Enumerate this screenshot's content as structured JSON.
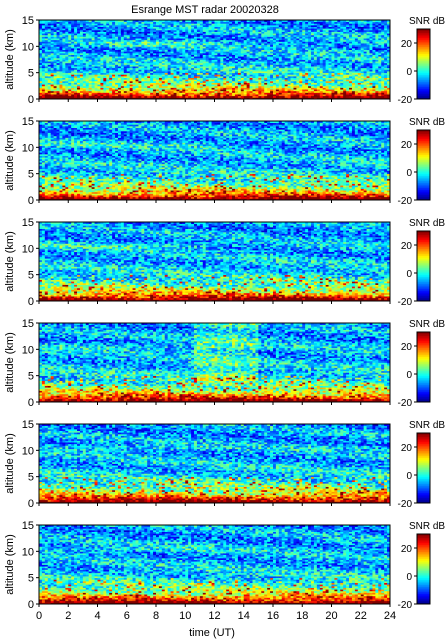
{
  "title": "Esrange MST radar 20020328",
  "xlabel": "time (UT)",
  "colorbar_label": "SNR dB",
  "chart_data": {
    "type": "heatmap",
    "title": "Esrange MST radar 20020328",
    "xlabel": "time (UT)",
    "ylabel": "altitude (km)",
    "xlim": [
      0,
      24
    ],
    "ylim": [
      0,
      15
    ],
    "x_ticks": [
      0,
      2,
      4,
      6,
      8,
      10,
      12,
      14,
      16,
      18,
      20,
      22,
      24
    ],
    "y_ticks": [
      0,
      5,
      10,
      15
    ],
    "colorscale": "jet",
    "color_range": [
      -20,
      30
    ],
    "colorbar_ticks": [
      -20,
      0,
      20
    ],
    "colorbar_label": "SNR dB",
    "panels": [
      {
        "ylabel": "altitude (km)",
        "ylim": [
          0,
          15
        ],
        "clim": [
          -20,
          30
        ]
      },
      {
        "ylabel": "altitude (km)",
        "ylim": [
          0,
          15
        ],
        "clim": [
          -20,
          30
        ]
      },
      {
        "ylabel": "altitude (km)",
        "ylim": [
          0,
          15
        ],
        "clim": [
          -20,
          30
        ]
      },
      {
        "ylabel": "altitude (km)",
        "ylim": [
          0,
          15
        ],
        "clim": [
          -20,
          30
        ]
      },
      {
        "ylabel": "altitude (km)",
        "ylim": [
          0,
          15
        ],
        "clim": [
          -20,
          30
        ]
      },
      {
        "ylabel": "altitude (km)",
        "ylim": [
          0,
          15
        ],
        "clim": [
          -20,
          30
        ]
      }
    ]
  }
}
